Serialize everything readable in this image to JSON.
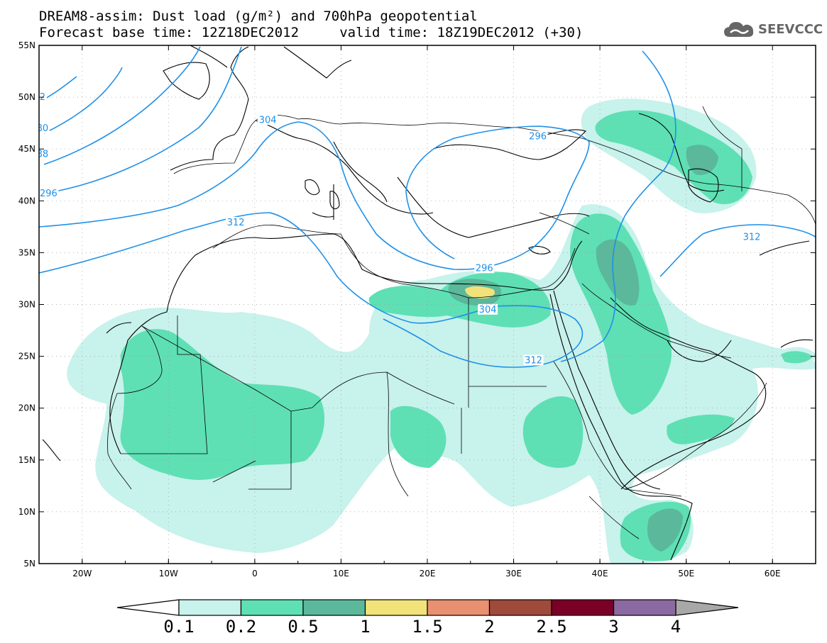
{
  "title": {
    "line1": "DREAM8-assim: Dust load (g/m²) and 700hPa geopotential",
    "line2": "Forecast base time: 12Z18DEC2012     valid time: 18Z19DEC2012 (+30)"
  },
  "logo": {
    "text": "SEEVCCC",
    "icon": "cloud-icon"
  },
  "map": {
    "lon_range": [
      -25,
      65
    ],
    "lat_range": [
      5,
      55
    ],
    "lat_ticks": [
      {
        "value": 55,
        "label": "55N"
      },
      {
        "value": 50,
        "label": "50N"
      },
      {
        "value": 45,
        "label": "45N"
      },
      {
        "value": 40,
        "label": "40N"
      },
      {
        "value": 35,
        "label": "35N"
      },
      {
        "value": 30,
        "label": "30N"
      },
      {
        "value": 25,
        "label": "25N"
      },
      {
        "value": 20,
        "label": "20N"
      },
      {
        "value": 15,
        "label": "15N"
      },
      {
        "value": 10,
        "label": "10N"
      },
      {
        "value": 5,
        "label": "5N"
      }
    ],
    "lon_ticks": [
      {
        "value": -20,
        "label": "20W"
      },
      {
        "value": -10,
        "label": "10W"
      },
      {
        "value": 0,
        "label": "0"
      },
      {
        "value": 10,
        "label": "10E"
      },
      {
        "value": 20,
        "label": "20E"
      },
      {
        "value": 30,
        "label": "30E"
      },
      {
        "value": 40,
        "label": "40E"
      },
      {
        "value": 50,
        "label": "50E"
      },
      {
        "value": 60,
        "label": "60E"
      }
    ],
    "contour_labels": [
      {
        "text": "2",
        "lon": -24.6,
        "lat": 50
      },
      {
        "text": "80",
        "lon": -24.6,
        "lat": 47
      },
      {
        "text": "88",
        "lon": -24.6,
        "lat": 44.5
      },
      {
        "text": "296",
        "lon": -23.9,
        "lat": 40.7
      },
      {
        "text": "304",
        "lon": 1.5,
        "lat": 47.8
      },
      {
        "text": "312",
        "lon": -2.2,
        "lat": 37.9
      },
      {
        "text": "296",
        "lon": 32.8,
        "lat": 46.2
      },
      {
        "text": "296",
        "lon": 26.6,
        "lat": 33.5
      },
      {
        "text": "304",
        "lon": 27.0,
        "lat": 29.5
      },
      {
        "text": "312",
        "lon": 32.3,
        "lat": 24.6
      },
      {
        "text": "312",
        "lon": 57.6,
        "lat": 36.5
      }
    ],
    "fill_colors": {
      "c01": "#c8f2ec",
      "c02": "#5ee0b4",
      "c05": "#5bb89a",
      "c10": "#f2e27a",
      "c15": "#e89070",
      "c20": "#a04a3c",
      "c25": "#7a0028",
      "c30": "#8a6aa0",
      "c40": "#a8a8a8",
      "contour": "#1e90e8"
    }
  },
  "colorbar": {
    "labels": [
      "0.1",
      "0.2",
      "0.5",
      "1",
      "1.5",
      "2",
      "2.5",
      "3",
      "4"
    ],
    "colors": [
      "#c8f2ec",
      "#5ee0b4",
      "#5bb89a",
      "#f2e27a",
      "#e89070",
      "#a04a3c",
      "#7a0028",
      "#8a6aa0"
    ],
    "under_color": "#ffffff",
    "over_color": "#a8a8a8"
  }
}
